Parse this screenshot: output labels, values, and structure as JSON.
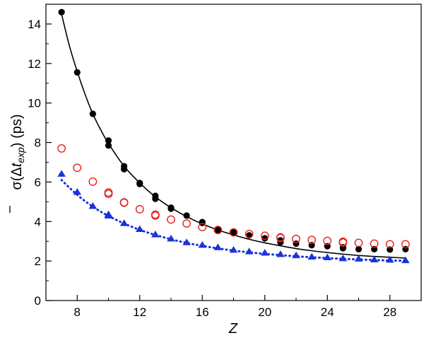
{
  "chart_data": {
    "type": "scatter",
    "title": "",
    "xlabel": "Z",
    "ylabel": {
      "prefix": "σ(Δ",
      "var": "t",
      "sub": "exp",
      "suffix": ") (ps)"
    },
    "xlim": [
      6,
      30
    ],
    "ylim": [
      0,
      15
    ],
    "xticks": [
      8,
      12,
      16,
      20,
      24,
      28
    ],
    "yticks": [
      0,
      2,
      4,
      6,
      8,
      10,
      12,
      14
    ],
    "grid": false,
    "legend": "none",
    "series": [
      {
        "marker": "filled-circle",
        "color": "#000000",
        "points": [
          [
            7,
            14.6
          ],
          [
            8,
            11.55
          ],
          [
            9,
            9.45
          ],
          [
            10,
            8.1
          ],
          [
            10,
            7.85
          ],
          [
            11,
            6.8
          ],
          [
            11,
            6.65
          ],
          [
            12,
            5.95
          ],
          [
            12,
            5.9
          ],
          [
            13,
            5.3
          ],
          [
            13,
            5.15
          ],
          [
            14,
            4.7
          ],
          [
            14,
            4.65
          ],
          [
            15,
            4.3
          ],
          [
            16,
            3.97
          ],
          [
            16,
            3.93
          ],
          [
            17,
            3.62
          ],
          [
            17,
            3.55
          ],
          [
            18,
            3.45
          ],
          [
            19,
            3.3
          ],
          [
            20,
            3.15
          ],
          [
            21,
            3.05
          ],
          [
            21,
            2.95
          ],
          [
            22,
            2.88
          ],
          [
            23,
            2.8
          ],
          [
            24,
            2.75
          ],
          [
            25,
            2.7
          ],
          [
            25,
            2.65
          ],
          [
            26,
            2.6
          ],
          [
            27,
            2.6
          ],
          [
            28,
            2.58
          ],
          [
            29,
            2.6
          ]
        ]
      },
      {
        "marker": "open-circle",
        "color": "#e8211d",
        "points": [
          [
            7,
            7.7
          ],
          [
            8,
            6.72
          ],
          [
            9,
            6.02
          ],
          [
            10,
            5.47
          ],
          [
            10,
            5.4
          ],
          [
            11,
            4.97
          ],
          [
            11,
            4.95
          ],
          [
            12,
            4.62
          ],
          [
            13,
            4.35
          ],
          [
            13,
            4.3
          ],
          [
            14,
            4.1
          ],
          [
            15,
            3.9
          ],
          [
            16,
            3.72
          ],
          [
            17,
            3.57
          ],
          [
            18,
            3.45
          ],
          [
            19,
            3.37
          ],
          [
            20,
            3.28
          ],
          [
            21,
            3.2
          ],
          [
            21,
            3.17
          ],
          [
            22,
            3.12
          ],
          [
            23,
            3.07
          ],
          [
            24,
            3.02
          ],
          [
            25,
            2.98
          ],
          [
            25,
            2.93
          ],
          [
            26,
            2.92
          ],
          [
            27,
            2.88
          ],
          [
            28,
            2.85
          ],
          [
            29,
            2.85
          ]
        ]
      },
      {
        "marker": "filled-triangle",
        "color": "#1a33d9",
        "points": [
          [
            7,
            6.4
          ],
          [
            8,
            5.48
          ],
          [
            9,
            4.77
          ],
          [
            10,
            4.35
          ],
          [
            10,
            4.28
          ],
          [
            11,
            3.9
          ],
          [
            12,
            3.6
          ],
          [
            13,
            3.33
          ],
          [
            14,
            3.12
          ],
          [
            15,
            2.93
          ],
          [
            16,
            2.8
          ],
          [
            17,
            2.68
          ],
          [
            18,
            2.55
          ],
          [
            19,
            2.47
          ],
          [
            20,
            2.4
          ],
          [
            21,
            2.33
          ],
          [
            22,
            2.27
          ],
          [
            23,
            2.2
          ],
          [
            24,
            2.17
          ],
          [
            25,
            2.12
          ],
          [
            26,
            2.1
          ],
          [
            27,
            2.06
          ],
          [
            28,
            2.05
          ],
          [
            29,
            2.02
          ]
        ]
      }
    ],
    "curves": [
      {
        "style": "solid",
        "color": "#000000",
        "points": [
          [
            7,
            14.5
          ],
          [
            7.5,
            12.9
          ],
          [
            8,
            11.6
          ],
          [
            8.5,
            10.45
          ],
          [
            9,
            9.45
          ],
          [
            9.5,
            8.65
          ],
          [
            10,
            7.95
          ],
          [
            11,
            6.8
          ],
          [
            12,
            5.95
          ],
          [
            13,
            5.25
          ],
          [
            14,
            4.7
          ],
          [
            15,
            4.25
          ],
          [
            16,
            3.88
          ],
          [
            17,
            3.57
          ],
          [
            18,
            3.32
          ],
          [
            19,
            3.1
          ],
          [
            20,
            2.92
          ],
          [
            21,
            2.77
          ],
          [
            22,
            2.63
          ],
          [
            23,
            2.52
          ],
          [
            24,
            2.43
          ],
          [
            25,
            2.35
          ],
          [
            26,
            2.28
          ],
          [
            27,
            2.23
          ],
          [
            28,
            2.19
          ],
          [
            29,
            2.15
          ]
        ]
      },
      {
        "style": "dotted",
        "color": "#1a33d9",
        "points": [
          [
            7,
            6.1
          ],
          [
            8,
            5.35
          ],
          [
            9,
            4.75
          ],
          [
            10,
            4.28
          ],
          [
            11,
            3.9
          ],
          [
            12,
            3.58
          ],
          [
            13,
            3.32
          ],
          [
            14,
            3.1
          ],
          [
            15,
            2.92
          ],
          [
            16,
            2.77
          ],
          [
            17,
            2.64
          ],
          [
            18,
            2.53
          ],
          [
            19,
            2.44
          ],
          [
            20,
            2.36
          ],
          [
            21,
            2.3
          ],
          [
            22,
            2.24
          ],
          [
            23,
            2.19
          ],
          [
            24,
            2.15
          ],
          [
            25,
            2.11
          ],
          [
            26,
            2.08
          ],
          [
            27,
            2.05
          ],
          [
            28,
            2.03
          ],
          [
            29,
            2.01
          ]
        ]
      }
    ]
  }
}
